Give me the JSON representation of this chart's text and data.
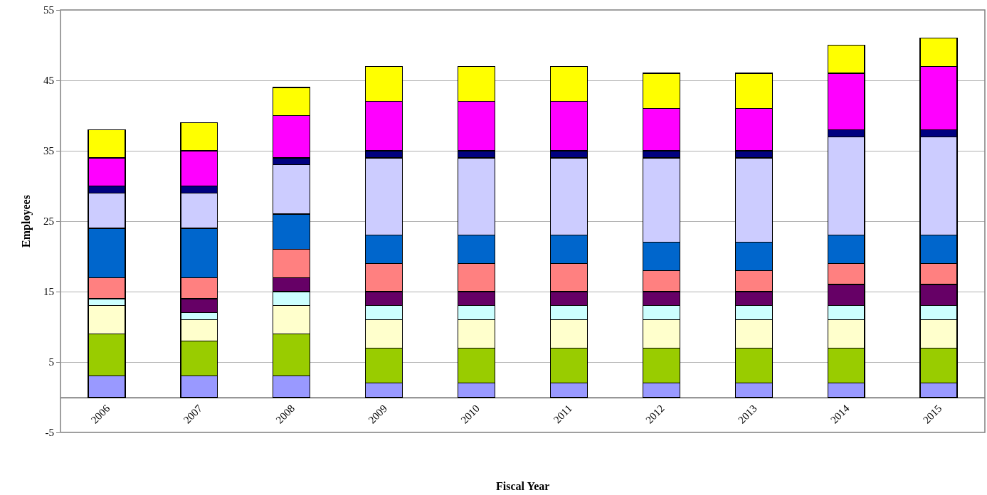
{
  "chart_data": {
    "type": "bar",
    "stacked": true,
    "xlabel": "Fiscal Year",
    "ylabel": "Employees",
    "categories": [
      "2006",
      "2007",
      "2008",
      "2009",
      "2010",
      "2011",
      "2012",
      "2013",
      "2014",
      "2015"
    ],
    "ylim": [
      -5,
      55
    ],
    "yticks": [
      -5,
      5,
      15,
      25,
      35,
      45,
      55
    ],
    "grid": "y",
    "series": [
      {
        "color": "#9999ff",
        "values": [
          3,
          3,
          3,
          2,
          2,
          2,
          2,
          2,
          2,
          2
        ]
      },
      {
        "color": "#99cc00",
        "values": [
          6,
          5,
          6,
          5,
          5,
          5,
          5,
          5,
          5,
          5
        ]
      },
      {
        "color": "#ffffcc",
        "values": [
          4,
          3,
          4,
          4,
          4,
          4,
          4,
          4,
          4,
          4
        ]
      },
      {
        "color": "#ccffff",
        "values": [
          1,
          1,
          2,
          2,
          2,
          2,
          2,
          2,
          2,
          2
        ]
      },
      {
        "color": "#660066",
        "values": [
          0,
          2,
          2,
          2,
          2,
          2,
          2,
          2,
          3,
          3
        ]
      },
      {
        "color": "#ff8080",
        "values": [
          3,
          3,
          4,
          4,
          4,
          4,
          3,
          3,
          3,
          3
        ]
      },
      {
        "color": "#0066cc",
        "values": [
          7,
          7,
          5,
          4,
          4,
          4,
          4,
          4,
          4,
          4
        ]
      },
      {
        "color": "#ccccff",
        "values": [
          5,
          5,
          7,
          11,
          11,
          11,
          12,
          12,
          14,
          14
        ]
      },
      {
        "color": "#000080",
        "values": [
          1,
          1,
          1,
          1,
          1,
          1,
          1,
          1,
          1,
          1
        ]
      },
      {
        "color": "#ff00ff",
        "values": [
          4,
          5,
          6,
          7,
          7,
          7,
          6,
          6,
          8,
          9
        ]
      },
      {
        "color": "#ffff00",
        "values": [
          4,
          4,
          4,
          5,
          5,
          5,
          5,
          5,
          4,
          4
        ]
      }
    ]
  }
}
